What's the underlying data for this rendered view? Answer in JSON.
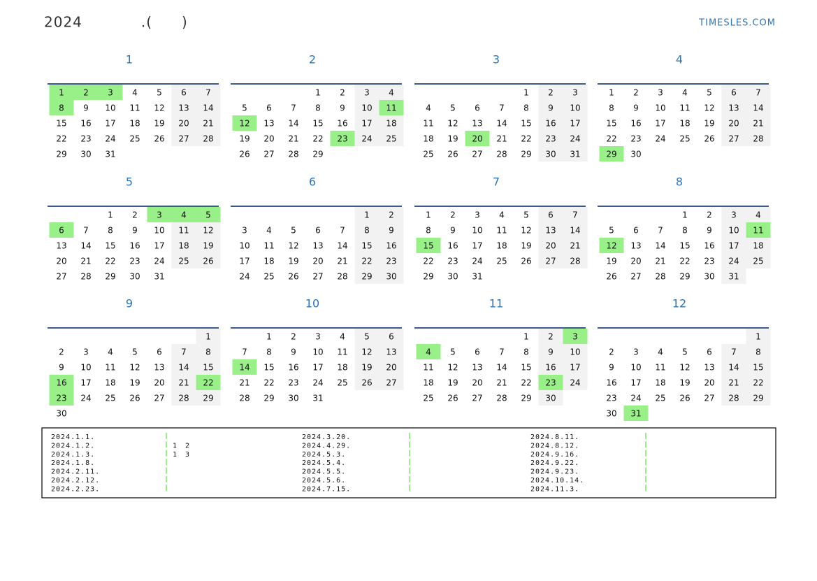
{
  "header": {
    "title": "2024　　　　.(　　)",
    "brand": "TIMESLES.COM"
  },
  "months": [
    {
      "label": "1",
      "holidays": [
        1,
        2,
        3,
        8
      ],
      "weeks": [
        [
          1,
          2,
          3,
          4,
          5,
          6,
          7
        ],
        [
          8,
          9,
          10,
          11,
          12,
          13,
          14
        ],
        [
          15,
          16,
          17,
          18,
          19,
          20,
          21
        ],
        [
          22,
          23,
          24,
          25,
          26,
          27,
          28
        ],
        [
          29,
          30,
          31,
          null,
          null,
          null,
          null
        ]
      ]
    },
    {
      "label": "2",
      "holidays": [
        11,
        12,
        23
      ],
      "weeks": [
        [
          null,
          null,
          null,
          1,
          2,
          3,
          4
        ],
        [
          5,
          6,
          7,
          8,
          9,
          10,
          11
        ],
        [
          12,
          13,
          14,
          15,
          16,
          17,
          18
        ],
        [
          19,
          20,
          21,
          22,
          23,
          24,
          25
        ],
        [
          26,
          27,
          28,
          29,
          null,
          null,
          null
        ]
      ]
    },
    {
      "label": "3",
      "holidays": [
        20
      ],
      "weeks": [
        [
          null,
          null,
          null,
          null,
          1,
          2,
          3
        ],
        [
          4,
          5,
          6,
          7,
          8,
          9,
          10
        ],
        [
          11,
          12,
          13,
          14,
          15,
          16,
          17
        ],
        [
          18,
          19,
          20,
          21,
          22,
          23,
          24
        ],
        [
          25,
          26,
          27,
          28,
          29,
          30,
          31
        ]
      ]
    },
    {
      "label": "4",
      "holidays": [
        29
      ],
      "weeks": [
        [
          1,
          2,
          3,
          4,
          5,
          6,
          7
        ],
        [
          8,
          9,
          10,
          11,
          12,
          13,
          14
        ],
        [
          15,
          16,
          17,
          18,
          19,
          20,
          21
        ],
        [
          22,
          23,
          24,
          25,
          26,
          27,
          28
        ],
        [
          29,
          30,
          null,
          null,
          null,
          null,
          null
        ]
      ]
    },
    {
      "label": "5",
      "holidays": [
        3,
        4,
        5,
        6
      ],
      "weeks": [
        [
          null,
          null,
          1,
          2,
          3,
          4,
          5
        ],
        [
          6,
          7,
          8,
          9,
          10,
          11,
          12
        ],
        [
          13,
          14,
          15,
          16,
          17,
          18,
          19
        ],
        [
          20,
          21,
          22,
          23,
          24,
          25,
          26
        ],
        [
          27,
          28,
          29,
          30,
          31,
          null,
          null
        ]
      ]
    },
    {
      "label": "6",
      "holidays": [],
      "weeks": [
        [
          null,
          null,
          null,
          null,
          null,
          1,
          2
        ],
        [
          3,
          4,
          5,
          6,
          7,
          8,
          9
        ],
        [
          10,
          11,
          12,
          13,
          14,
          15,
          16
        ],
        [
          17,
          18,
          19,
          20,
          21,
          22,
          23
        ],
        [
          24,
          25,
          26,
          27,
          28,
          29,
          30
        ]
      ]
    },
    {
      "label": "7",
      "holidays": [
        15
      ],
      "weeks": [
        [
          1,
          2,
          3,
          4,
          5,
          6,
          7
        ],
        [
          8,
          9,
          10,
          11,
          12,
          13,
          14
        ],
        [
          15,
          16,
          17,
          18,
          19,
          20,
          21
        ],
        [
          22,
          23,
          24,
          25,
          26,
          27,
          28
        ],
        [
          29,
          30,
          31,
          null,
          null,
          null,
          null
        ]
      ]
    },
    {
      "label": "8",
      "holidays": [
        11,
        12
      ],
      "weeks": [
        [
          null,
          null,
          null,
          1,
          2,
          3,
          4
        ],
        [
          5,
          6,
          7,
          8,
          9,
          10,
          11
        ],
        [
          12,
          13,
          14,
          15,
          16,
          17,
          18
        ],
        [
          19,
          20,
          21,
          22,
          23,
          24,
          25
        ],
        [
          26,
          27,
          28,
          29,
          30,
          31,
          null
        ]
      ]
    },
    {
      "label": "9",
      "holidays": [
        16,
        22,
        23
      ],
      "weeks": [
        [
          null,
          null,
          null,
          null,
          null,
          null,
          1
        ],
        [
          2,
          3,
          4,
          5,
          6,
          7,
          8
        ],
        [
          9,
          10,
          11,
          12,
          13,
          14,
          15
        ],
        [
          16,
          17,
          18,
          19,
          20,
          21,
          22
        ],
        [
          23,
          24,
          25,
          26,
          27,
          28,
          29
        ],
        [
          30,
          null,
          null,
          null,
          null,
          null,
          null
        ]
      ]
    },
    {
      "label": "10",
      "holidays": [
        14
      ],
      "weeks": [
        [
          null,
          1,
          2,
          3,
          4,
          5,
          6
        ],
        [
          7,
          8,
          9,
          10,
          11,
          12,
          13
        ],
        [
          14,
          15,
          16,
          17,
          18,
          19,
          20
        ],
        [
          21,
          22,
          23,
          24,
          25,
          26,
          27
        ],
        [
          28,
          29,
          30,
          31,
          null,
          null,
          null
        ]
      ]
    },
    {
      "label": "11",
      "holidays": [
        3,
        4,
        23
      ],
      "weeks": [
        [
          null,
          null,
          null,
          null,
          1,
          2,
          3
        ],
        [
          4,
          5,
          6,
          7,
          8,
          9,
          10
        ],
        [
          11,
          12,
          13,
          14,
          15,
          16,
          17
        ],
        [
          18,
          19,
          20,
          21,
          22,
          23,
          24
        ],
        [
          25,
          26,
          27,
          28,
          29,
          30,
          null
        ]
      ]
    },
    {
      "label": "12",
      "holidays": [
        31
      ],
      "weeks": [
        [
          null,
          null,
          null,
          null,
          null,
          null,
          1
        ],
        [
          2,
          3,
          4,
          5,
          6,
          7,
          8
        ],
        [
          9,
          10,
          11,
          12,
          13,
          14,
          15
        ],
        [
          16,
          17,
          18,
          19,
          20,
          21,
          22
        ],
        [
          23,
          24,
          25,
          26,
          27,
          28,
          29
        ],
        [
          30,
          31,
          null,
          null,
          null,
          null,
          null
        ]
      ]
    }
  ],
  "holiday_list": [
    {
      "dates": [
        "2024.1.1.",
        "2024.1.2.",
        "2024.1.3.",
        "2024.1.8.",
        "2024.2.11.",
        "2024.2.12.",
        "2024.2.23."
      ],
      "notes": [
        null,
        "1　2",
        "1　3"
      ]
    },
    {
      "dates": [
        "2024.3.20.",
        "2024.4.29.",
        "2024.5.3.",
        "2024.5.4.",
        "2024.5.5.",
        "2024.5.6.",
        "2024.7.15."
      ]
    },
    {
      "dates": [
        "2024.8.11.",
        "2024.8.12.",
        "2024.9.16.",
        "2024.9.22.",
        "2024.9.23.",
        "2024.10.14.",
        "2024.11.3."
      ]
    }
  ]
}
